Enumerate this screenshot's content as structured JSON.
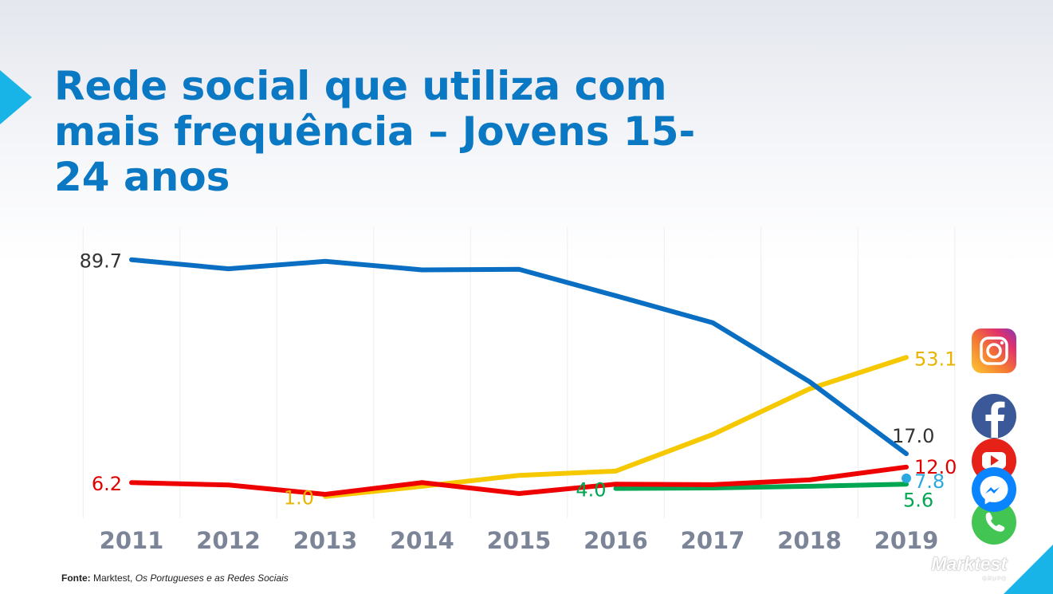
{
  "slide": {
    "title_part1": "Rede social que utiliza com mais frequência – ",
    "title_part2": "Jovens 15-24 anos",
    "footer_label": "Fonte:",
    "footer_source": "Marktest,",
    "footer_publication": "Os Portugueses e as Redes Sociais",
    "logo_text": "Marktest",
    "logo_sub": "GRUPO",
    "accent_color": "#18b4e8",
    "title_color": "#0a78c3"
  },
  "icons": [
    "instagram-icon",
    "facebook-icon",
    "youtube-icon",
    "messenger-icon",
    "whatsapp-icon"
  ],
  "chart_data": {
    "type": "line",
    "title": "",
    "xlabel": "",
    "ylabel": "",
    "x": [
      "2011",
      "2012",
      "2013",
      "2014",
      "2015",
      "2016",
      "2017",
      "2018",
      "2019"
    ],
    "ylim": [
      0,
      95
    ],
    "grid": true,
    "series": [
      {
        "key": "facebook",
        "color": "#0a6fc2",
        "values": [
          89.7,
          86.3,
          89.1,
          85.9,
          86.1,
          76.2,
          66.1,
          44.0,
          17.0
        ],
        "labels": [
          {
            "index": 0,
            "text": "89.7",
            "color": "#333333"
          },
          {
            "index": 8,
            "text": "17.0",
            "color": "#333333"
          }
        ]
      },
      {
        "key": "instagram",
        "color": "#f5c800",
        "values": [
          null,
          null,
          1.0,
          4.8,
          8.9,
          10.5,
          24.2,
          41.3,
          53.1
        ],
        "labels": [
          {
            "index": 2,
            "text": "1.0",
            "color": "#e8b400"
          },
          {
            "index": 8,
            "text": "53.1",
            "color": "#e8b400"
          }
        ]
      },
      {
        "key": "youtube",
        "color": "#ee0000",
        "values": [
          6.2,
          5.3,
          1.8,
          6.2,
          2.1,
          5.6,
          5.4,
          7.2,
          12.0
        ],
        "labels": [
          {
            "index": 0,
            "text": "6.2",
            "color": "#e00000"
          },
          {
            "index": 8,
            "text": "12.0",
            "color": "#e00000"
          }
        ]
      },
      {
        "key": "whatsapp",
        "color": "#00a651",
        "values": [
          null,
          null,
          null,
          null,
          null,
          4.0,
          4.2,
          4.8,
          5.6
        ],
        "labels": [
          {
            "index": 5,
            "text": "4.0",
            "color": "#00a651"
          },
          {
            "index": 8,
            "text": "5.6",
            "color": "#00a651"
          }
        ]
      },
      {
        "key": "messenger",
        "color": "#2aa8e0",
        "marker": "dot",
        "values": [
          null,
          null,
          null,
          null,
          null,
          null,
          null,
          null,
          7.8
        ],
        "labels": [
          {
            "index": 8,
            "text": "7.8",
            "color": "#2aa8e0"
          }
        ]
      }
    ]
  }
}
